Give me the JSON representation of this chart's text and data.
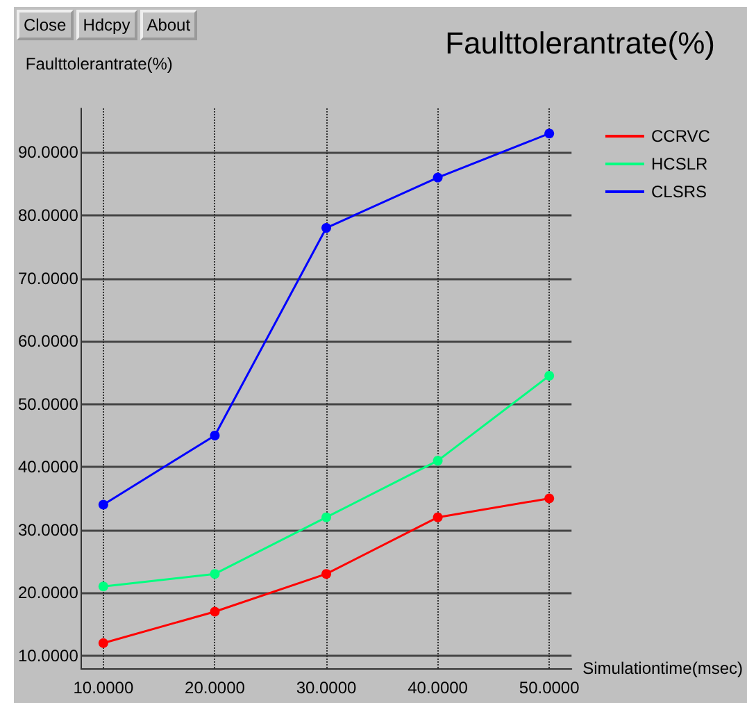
{
  "chart_data": {
    "type": "line",
    "title": "Faulttolerantrate(%)",
    "ylabel": "Faulttolerantrate(%)",
    "xlabel": "Simulationtime(msec)",
    "annotations": [
      "Close",
      "Hdcpy",
      "About"
    ],
    "x": [
      10,
      20,
      30,
      40,
      50
    ],
    "series": [
      {
        "name": "CCRVC",
        "color": "#ff0000",
        "values": [
          12,
          17,
          23,
          32,
          35
        ]
      },
      {
        "name": "HCSLR",
        "color": "#00ff80",
        "values": [
          21,
          23,
          32,
          41,
          54.5
        ]
      },
      {
        "name": "CLSRS",
        "color": "#0000ff",
        "values": [
          34,
          45,
          78,
          86,
          93
        ]
      }
    ],
    "xlim": [
      8,
      52
    ],
    "xticks": [
      {
        "value": 10,
        "label": "10.0000"
      },
      {
        "value": 20,
        "label": "20.0000"
      },
      {
        "value": 30,
        "label": "30.0000"
      },
      {
        "value": 40,
        "label": "40.0000"
      },
      {
        "value": 50,
        "label": "50.0000"
      }
    ],
    "ylim": [
      8,
      97
    ],
    "yticks": [
      {
        "value": 10,
        "label": "10.0000"
      },
      {
        "value": 20,
        "label": "20.0000"
      },
      {
        "value": 30,
        "label": "30.0000"
      },
      {
        "value": 40,
        "label": "40.0000"
      },
      {
        "value": 50,
        "label": "50.0000"
      },
      {
        "value": 60,
        "label": "60.0000"
      },
      {
        "value": 70,
        "label": "70.0000"
      },
      {
        "value": 80,
        "label": "80.0000"
      },
      {
        "value": 90,
        "label": "90.0000"
      }
    ],
    "grid": true,
    "legend": "top right",
    "marker": "circle",
    "line_style": "solid"
  }
}
